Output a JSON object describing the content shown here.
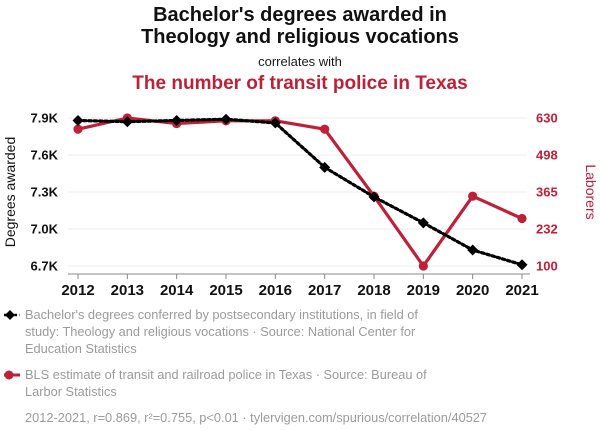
{
  "header": {
    "title_line1": "Bachelor's degrees awarded in",
    "title_line2": "Theology and religious vocations",
    "connector": "correlates with",
    "subtitle": "The number of transit police in Texas"
  },
  "colors": {
    "series_black": "#000000",
    "series_red": "#bf2038",
    "legend_text": "#9b9b9b",
    "grid": "#ececec",
    "axis": "#888888",
    "title_text": "#111111"
  },
  "chart_data": {
    "type": "line",
    "x": [
      2012,
      2013,
      2014,
      2015,
      2016,
      2017,
      2018,
      2019,
      2020,
      2021
    ],
    "x_ticks": [
      "2012",
      "2013",
      "2014",
      "2015",
      "2016",
      "2017",
      "2018",
      "2019",
      "2020",
      "2021"
    ],
    "series": [
      {
        "name": "Bachelor's degrees conferred by postsecondary institutions, in field of study: Theology and religious vocations",
        "source": "National Center for Education Statistics",
        "axis": "left",
        "marker": "diamond",
        "line": "dashed",
        "color_key": "series_black",
        "values": [
          7880,
          7870,
          7880,
          7890,
          7860,
          7500,
          7260,
          7050,
          6830,
          6710
        ]
      },
      {
        "name": "BLS estimate of transit and railroad police in Texas",
        "source": "Bureau of Larbor Statistics",
        "axis": "right",
        "marker": "circle",
        "line": "solid",
        "color_key": "series_red",
        "values": [
          590,
          630,
          610,
          620,
          620,
          590,
          350,
          100,
          350,
          270
        ]
      }
    ],
    "left_axis": {
      "label": "Degrees awarded",
      "range": [
        6700,
        7900
      ],
      "ticks": [
        {
          "value": 7900,
          "label": "7.9K"
        },
        {
          "value": 7600,
          "label": "7.6K"
        },
        {
          "value": 7300,
          "label": "7.3K"
        },
        {
          "value": 7000,
          "label": "7.0K"
        },
        {
          "value": 6700,
          "label": "6.7K"
        }
      ]
    },
    "right_axis": {
      "label": "Laborers",
      "range": [
        100,
        630
      ],
      "ticks": [
        {
          "value": 630,
          "label": "630"
        },
        {
          "value": 498,
          "label": "498"
        },
        {
          "value": 365,
          "label": "365"
        },
        {
          "value": 232,
          "label": "232"
        },
        {
          "value": 100,
          "label": "100"
        }
      ]
    },
    "grid": true,
    "legend_position": "bottom"
  },
  "legend": {
    "items": [
      {
        "lines": [
          "Bachelor's degrees conferred by postsecondary institutions, in field of",
          "study: Theology and religious vocations · Source: National Center for",
          "Education Statistics"
        ]
      },
      {
        "lines": [
          "BLS estimate of transit and railroad police in Texas · Source: Bureau of",
          "Larbor Statistics"
        ]
      }
    ],
    "footer": "2012-2021, r=0.869, r²=0.755, p<0.01 · tylervigen.com/spurious/correlation/40527"
  }
}
